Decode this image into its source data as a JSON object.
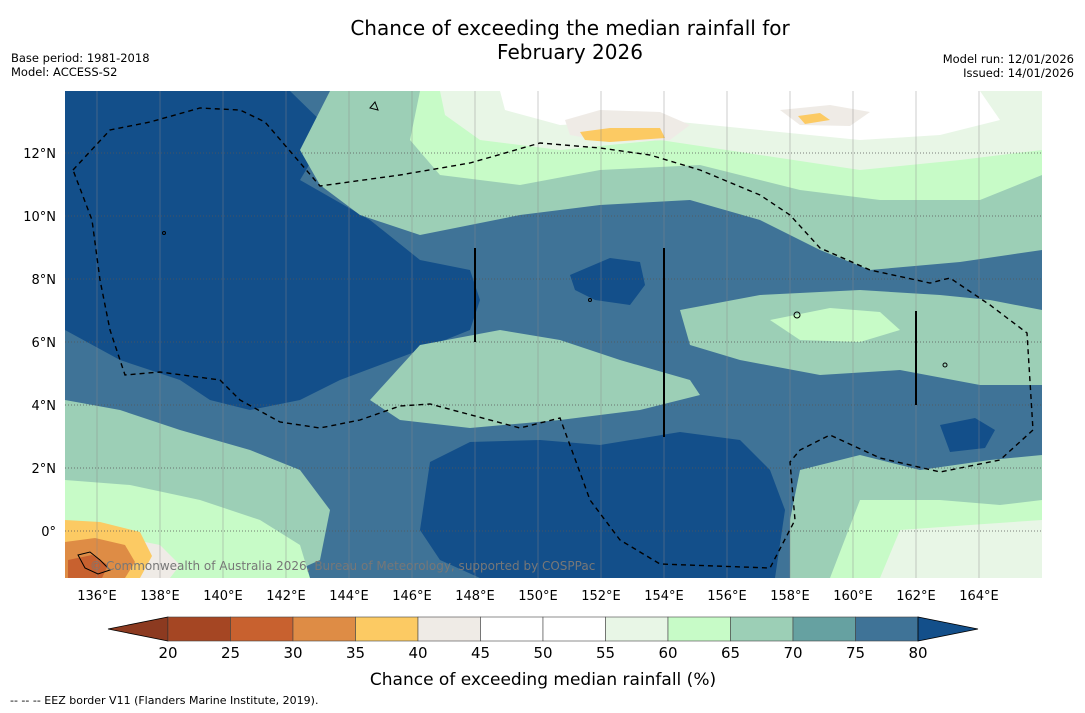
{
  "header": {
    "title_line1": "Chance of exceeding the median rainfall for",
    "title_line2": "February 2026",
    "base_period": "Base period: 1981-2018",
    "model": "Model: ACCESS-S2",
    "model_run": "Model run: 12/01/2026",
    "issued": "Issued: 14/01/2026"
  },
  "map": {
    "lon_labels": [
      "136°E",
      "138°E",
      "140°E",
      "142°E",
      "144°E",
      "146°E",
      "148°E",
      "150°E",
      "152°E",
      "154°E",
      "156°E",
      "158°E",
      "160°E",
      "162°E",
      "164°E"
    ],
    "lat_labels": [
      "12°N",
      "10°N",
      "8°N",
      "6°N",
      "4°N",
      "2°N",
      "0°"
    ],
    "copyright": "© Commonwealth of Australia 2026, Bureau of Meteorology, supported by COSPPac"
  },
  "colorbar": {
    "ticks": [
      "20",
      "25",
      "30",
      "35",
      "40",
      "45",
      "50",
      "55",
      "60",
      "65",
      "70",
      "75",
      "80"
    ],
    "label": "Chance of exceeding median rainfall (%)",
    "colors": [
      "#a54623",
      "#c8612f",
      "#de8c45",
      "#fcca63",
      "#efebe6",
      "#ffffff",
      "#ffffff",
      "#e8f6e6",
      "#c7fbc7",
      "#9ccfb6",
      "#66a1a1",
      "#3f7397"
    ],
    "under_color": "#8c3a20",
    "over_color": "#134f8a"
  },
  "footer": {
    "eez_note": "--  --  -- EEZ border V11 (Flanders Marine Institute, 2019)."
  }
}
